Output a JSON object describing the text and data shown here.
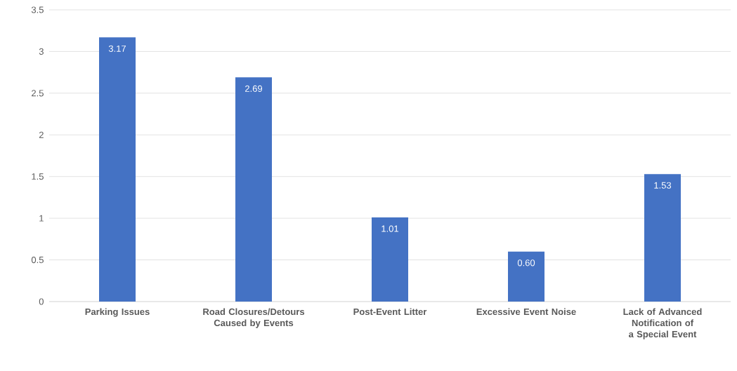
{
  "chart_data": {
    "type": "bar",
    "categories": [
      "Parking Issues",
      "Road Closures/Detours Caused by Events",
      "Post-Event Litter",
      "Excessive Event Noise",
      "Lack of Advanced Notification of a Special Event"
    ],
    "values": [
      3.17,
      2.69,
      1.01,
      0.6,
      1.53
    ],
    "value_labels": [
      "3.17",
      "2.69",
      "1.01",
      "0.60",
      "1.53"
    ],
    "color": "#4472c4",
    "ylim": [
      0,
      3.5
    ],
    "yticks": [
      0,
      0.5,
      1,
      1.5,
      2,
      2.5,
      3,
      3.5
    ],
    "grid": "y"
  }
}
